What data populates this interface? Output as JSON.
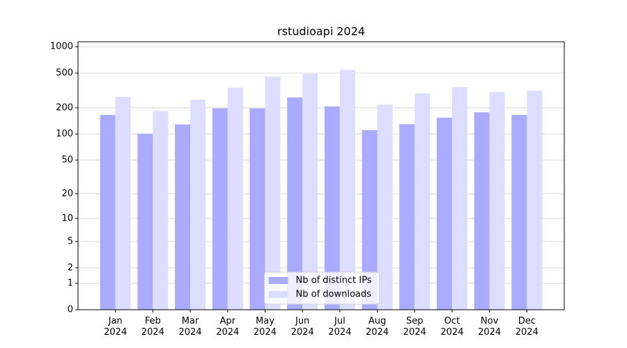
{
  "chart_data": {
    "type": "bar",
    "title": "rstudioapi 2024",
    "yscale": "log1p",
    "categories": [
      "Jan\n2024",
      "Feb\n2024",
      "Mar\n2024",
      "Apr\n2024",
      "May\n2024",
      "Jun\n2024",
      "Jul\n2024",
      "Aug\n2024",
      "Sep\n2024",
      "Oct\n2024",
      "Nov\n2024",
      "Dec\n2024"
    ],
    "series": [
      {
        "name": "Nb of distinct IPs",
        "color": "#aaaaff",
        "values": [
          166,
          101,
          129,
          197,
          197,
          263,
          207,
          111,
          130,
          154,
          178,
          166
        ]
      },
      {
        "name": "Nb of downloads",
        "color": "#ddddff",
        "values": [
          267,
          185,
          248,
          339,
          455,
          489,
          546,
          218,
          293,
          346,
          304,
          315
        ]
      }
    ],
    "ylim": [
      0,
      1140
    ],
    "yticks": [
      0,
      1,
      2,
      5,
      10,
      20,
      50,
      100,
      200,
      500,
      1000
    ],
    "grid": true,
    "legend": "lower center"
  }
}
